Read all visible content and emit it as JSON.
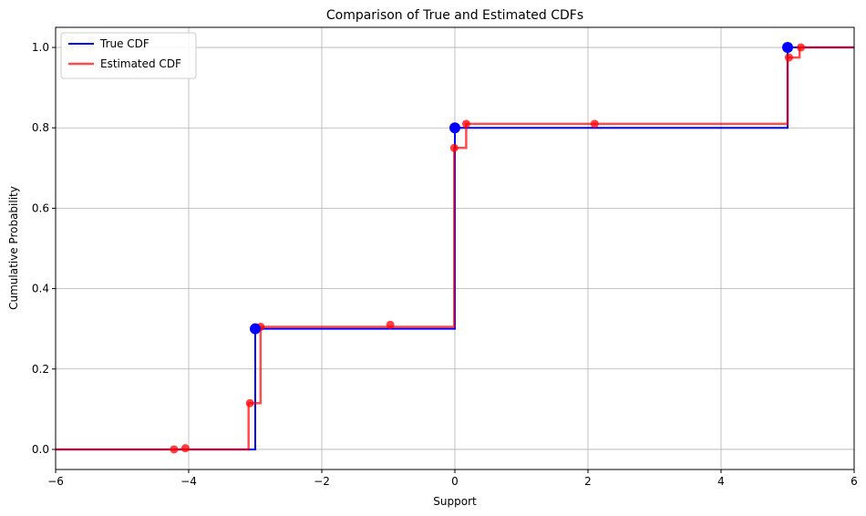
{
  "chart_data": {
    "type": "line",
    "title": "Comparison of True and Estimated CDFs",
    "xlabel": "Support",
    "ylabel": "Cumulative Probability",
    "xlim": [
      -6,
      6
    ],
    "ylim": [
      -0.05,
      1.05
    ],
    "xticks": [
      -6,
      -4,
      -2,
      0,
      2,
      4,
      6
    ],
    "xtick_labels": [
      "−6",
      "−4",
      "−2",
      "0",
      "2",
      "4",
      "6"
    ],
    "yticks": [
      0.0,
      0.2,
      0.4,
      0.6,
      0.8,
      1.0
    ],
    "ytick_labels": [
      "0.0",
      "0.2",
      "0.4",
      "0.6",
      "0.8",
      "1.0"
    ],
    "grid": true,
    "legend_position": "upper-left",
    "series": [
      {
        "name": "True CDF",
        "color": "#0000ff",
        "step": "post",
        "x": [
          -6,
          -3,
          0,
          5,
          6
        ],
        "y": [
          0.0,
          0.3,
          0.8,
          1.0,
          1.0
        ],
        "markers": {
          "x": [
            -3,
            0,
            5
          ],
          "y": [
            0.3,
            0.8,
            1.0
          ]
        }
      },
      {
        "name": "Estimated CDF",
        "color": "#ff0000",
        "step": "post",
        "x": [
          -6,
          -3.1,
          -2.92,
          -0.01,
          0.17,
          5.0,
          5.18,
          6
        ],
        "y": [
          0.0,
          0.115,
          0.305,
          0.75,
          0.81,
          0.975,
          1.0,
          1.0
        ],
        "markers": {
          "x": [
            -4.22,
            -4.05,
            -3.08,
            -2.92,
            -0.97,
            -0.01,
            0.17,
            2.1,
            5.02,
            5.2
          ],
          "y": [
            0.0,
            0.003,
            0.115,
            0.305,
            0.31,
            0.75,
            0.81,
            0.81,
            0.975,
            1.0
          ]
        }
      }
    ]
  }
}
